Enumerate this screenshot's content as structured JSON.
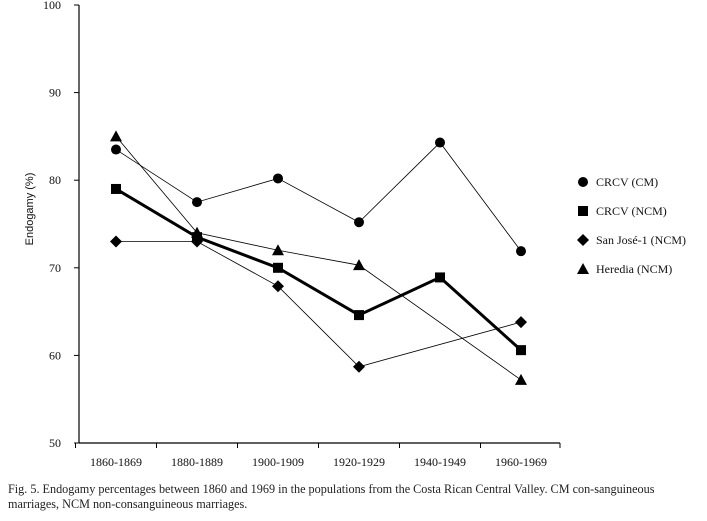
{
  "chart_data": {
    "type": "line",
    "categories": [
      "1860-1869",
      "1880-1889",
      "1900-1909",
      "1920-1929",
      "1940-1949",
      "1960-1969"
    ],
    "ylabel": "Endogamy (%)",
    "xlabel": "",
    "ylim": [
      50,
      100
    ],
    "yticks": [
      50,
      60,
      70,
      80,
      90,
      100
    ],
    "grid": false,
    "legend_position": "right",
    "series": [
      {
        "name": "CRCV (CM)",
        "marker": "circle",
        "line": "thin",
        "values": [
          83.5,
          77.5,
          80.2,
          75.2,
          84.3,
          71.9
        ]
      },
      {
        "name": "CRCV (NCM)",
        "marker": "square",
        "line": "thick",
        "values": [
          79.0,
          73.5,
          70.0,
          64.6,
          68.9,
          60.6
        ]
      },
      {
        "name": "San José-1 (NCM)",
        "marker": "diamond",
        "line": "thin",
        "values": [
          73.0,
          73.0,
          67.9,
          58.7,
          null,
          63.8
        ]
      },
      {
        "name": "Heredia (NCM)",
        "marker": "triangle",
        "line": "thin",
        "values": [
          85.0,
          74.0,
          72.0,
          70.3,
          null,
          57.2
        ]
      }
    ]
  },
  "caption": "Fig. 5. Endogamy percentages between 1860 and 1969 in the populations from the Costa Rican Central Valley. CM con-sanguineous marriages, NCM non-consanguineous marriages."
}
